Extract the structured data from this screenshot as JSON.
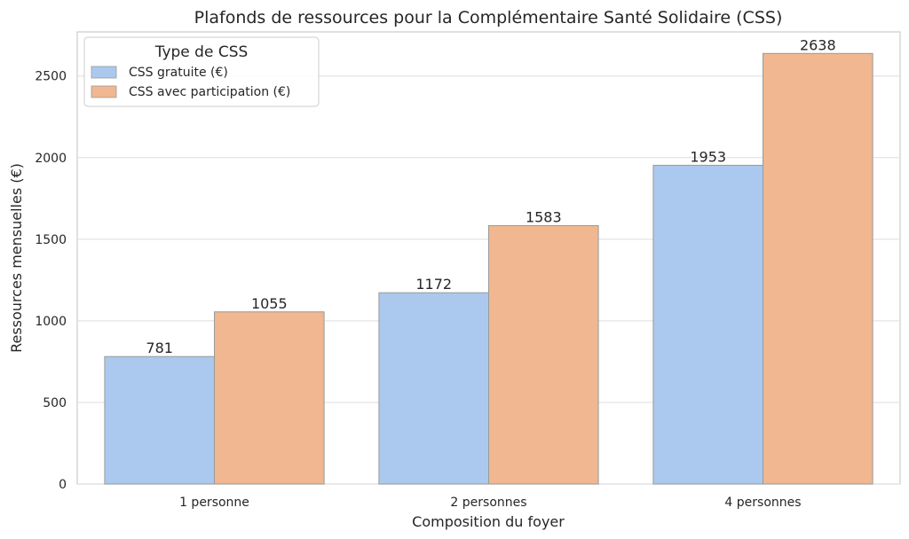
{
  "chart_data": {
    "type": "bar",
    "title": "Plafonds de ressources pour la Complémentaire Santé Solidaire (CSS)",
    "xlabel": "Composition du foyer",
    "ylabel": "Ressources mensuelles (€)",
    "categories": [
      "1 personne",
      "2 personnes",
      "4 personnes"
    ],
    "series": [
      {
        "name": "CSS gratuite (€)",
        "values": [
          781,
          1172,
          1953
        ],
        "color": "#abc9ee"
      },
      {
        "name": "CSS avec participation (€)",
        "values": [
          1055,
          1583,
          2638
        ],
        "color": "#f0b790"
      }
    ],
    "ylim": [
      0,
      2770
    ],
    "yticks": [
      0,
      500,
      1000,
      1500,
      2000,
      2500
    ],
    "grid": true,
    "legend": {
      "title": "Type de CSS",
      "placement": "top-left"
    }
  }
}
